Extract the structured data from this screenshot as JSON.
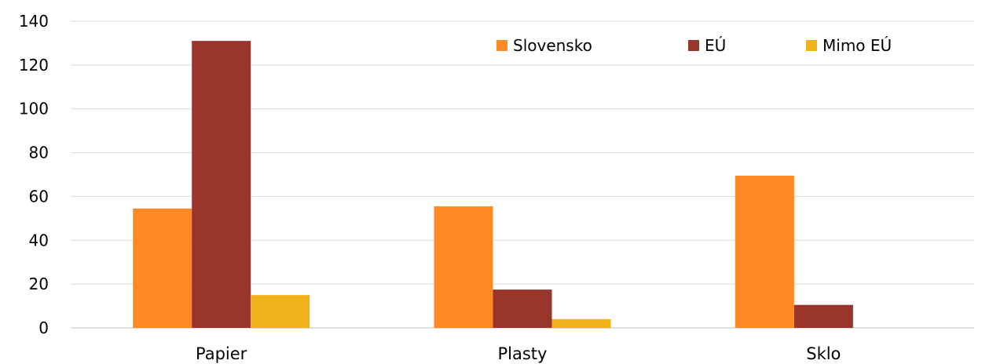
{
  "chart_data": {
    "type": "bar",
    "categories": [
      "Papier",
      "Plasty",
      "Sklo"
    ],
    "series": [
      {
        "name": "Slovensko",
        "color": "#FF8A24",
        "values": [
          54.5,
          55.5,
          69.5
        ]
      },
      {
        "name": "EÚ",
        "color": "#9A352B",
        "values": [
          131,
          17.5,
          10.5
        ]
      },
      {
        "name": "Mimo EÚ",
        "color": "#F0B21A",
        "values": [
          15,
          4,
          0
        ]
      }
    ],
    "yticks": [
      0,
      20,
      40,
      60,
      80,
      100,
      120,
      140
    ],
    "ylim": [
      0,
      140
    ],
    "grid": true,
    "legend_position": "top-right",
    "title": "",
    "xlabel": "",
    "ylabel": ""
  }
}
